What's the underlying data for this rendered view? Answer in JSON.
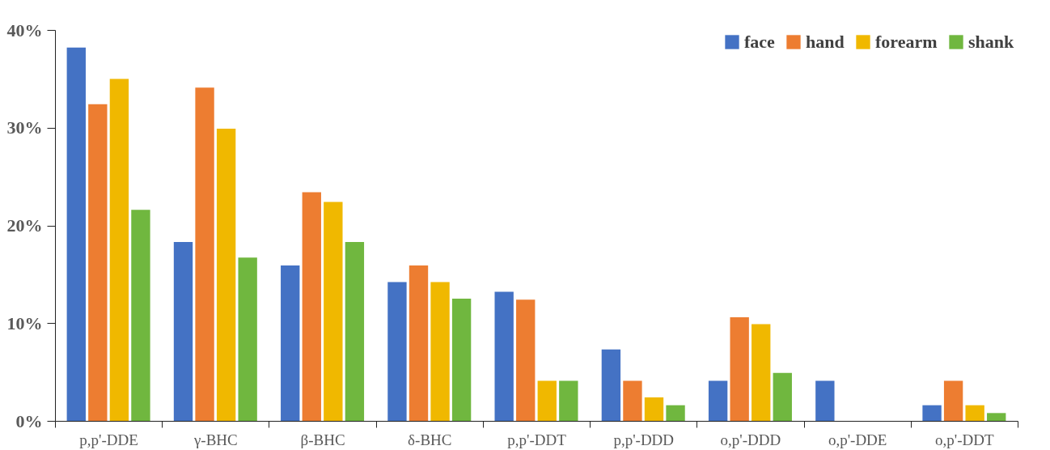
{
  "chart_data": {
    "type": "bar",
    "categories": [
      "p,p'-DDE",
      "γ-BHC",
      "β-BHC",
      "δ-BHC",
      "p,p'-DDT",
      "p,p'-DDD",
      "o,p'-DDD",
      "o,p'-DDE",
      "o,p'-DDT"
    ],
    "series": [
      {
        "name": "face",
        "color": "#4472c4",
        "values": [
          38.2,
          18.3,
          15.9,
          14.2,
          13.2,
          7.3,
          4.1,
          4.1,
          1.6
        ]
      },
      {
        "name": "hand",
        "color": "#ed7d31",
        "values": [
          32.4,
          34.1,
          23.4,
          15.9,
          12.4,
          4.1,
          10.6,
          0,
          4.1
        ]
      },
      {
        "name": "forearm",
        "color": "#f0b800",
        "values": [
          35.0,
          29.9,
          22.4,
          14.2,
          4.1,
          2.4,
          9.9,
          0,
          1.6
        ]
      },
      {
        "name": "shank",
        "color": "#70b73f",
        "values": [
          21.6,
          16.7,
          18.3,
          12.5,
          4.1,
          1.6,
          4.9,
          0,
          0.8
        ]
      }
    ],
    "ylim": [
      0,
      40
    ],
    "yticks": [
      {
        "value": 0,
        "label": "0%"
      },
      {
        "value": 10,
        "label": "10%"
      },
      {
        "value": 20,
        "label": "20%"
      },
      {
        "value": 30,
        "label": "30%"
      },
      {
        "value": 40,
        "label": "40%"
      }
    ],
    "grid": false,
    "legend": "top right"
  }
}
